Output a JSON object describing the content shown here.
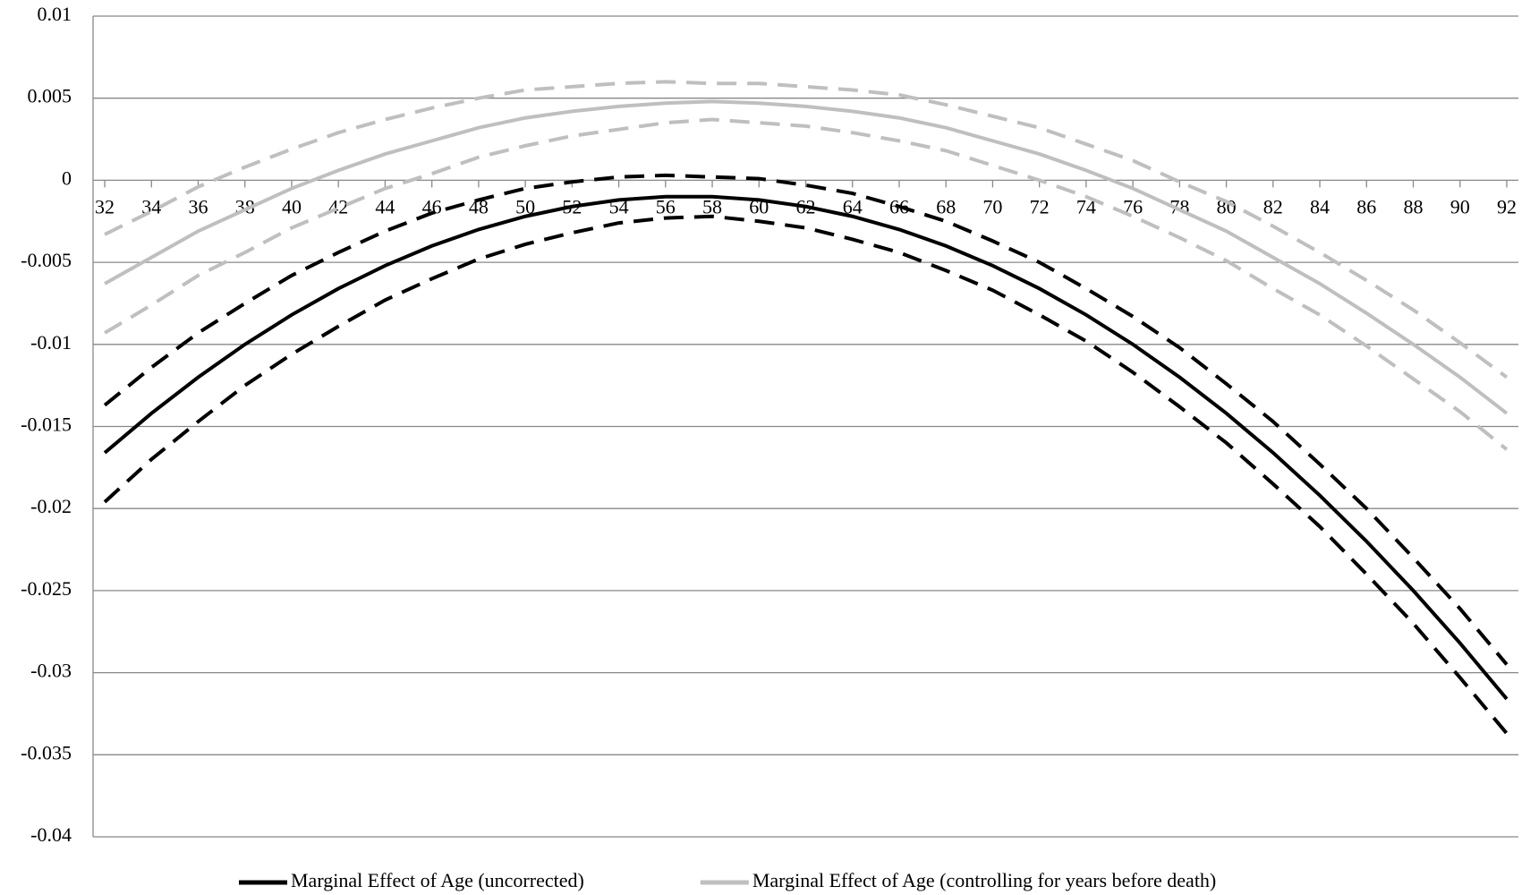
{
  "chart_data": {
    "type": "line",
    "x": [
      32,
      34,
      36,
      38,
      40,
      42,
      44,
      46,
      48,
      50,
      52,
      54,
      56,
      58,
      60,
      62,
      64,
      66,
      68,
      70,
      72,
      74,
      76,
      78,
      80,
      82,
      84,
      86,
      88,
      90,
      92
    ],
    "xlim": [
      31.5,
      92.5
    ],
    "xticks": [
      32,
      34,
      36,
      38,
      40,
      42,
      44,
      46,
      48,
      50,
      52,
      54,
      56,
      58,
      60,
      62,
      64,
      66,
      68,
      70,
      72,
      74,
      76,
      78,
      80,
      82,
      84,
      86,
      88,
      90,
      92
    ],
    "ylim": [
      -0.04,
      0.01
    ],
    "yticks": [
      0.01,
      0.005,
      0,
      -0.005,
      -0.01,
      -0.015,
      -0.02,
      -0.025,
      -0.03,
      -0.035,
      -0.04
    ],
    "grid": true,
    "legend": "bottom",
    "series": [
      {
        "name": "Marginal Effect of Age (uncorrected)",
        "color": "#000000",
        "dash": false,
        "values": [
          -0.0166,
          -0.0142,
          -0.012,
          -0.01,
          -0.0082,
          -0.0066,
          -0.0052,
          -0.004,
          -0.003,
          -0.0022,
          -0.0016,
          -0.0012,
          -0.001,
          -0.001,
          -0.0012,
          -0.0016,
          -0.0022,
          -0.003,
          -0.004,
          -0.0052,
          -0.0066,
          -0.0082,
          -0.01,
          -0.012,
          -0.0142,
          -0.0166,
          -0.0192,
          -0.022,
          -0.025,
          -0.0282,
          -0.0316
        ]
      },
      {
        "color": "#000000",
        "dash": true,
        "values": [
          -0.0137,
          -0.0114,
          -0.0093,
          -0.0075,
          -0.0058,
          -0.0044,
          -0.0031,
          -0.002,
          -0.0012,
          -0.0005,
          -0.0001,
          0.0002,
          0.0003,
          0.0002,
          0.0001,
          -0.0003,
          -0.0008,
          -0.0016,
          -0.0025,
          -0.0037,
          -0.005,
          -0.0066,
          -0.0083,
          -0.0102,
          -0.0124,
          -0.0147,
          -0.0173,
          -0.02,
          -0.023,
          -0.0261,
          -0.0295
        ]
      },
      {
        "color": "#000000",
        "dash": true,
        "values": [
          -0.0196,
          -0.017,
          -0.0147,
          -0.0125,
          -0.0106,
          -0.0089,
          -0.0073,
          -0.006,
          -0.0048,
          -0.0039,
          -0.0032,
          -0.0026,
          -0.0023,
          -0.0022,
          -0.0025,
          -0.0029,
          -0.0036,
          -0.0044,
          -0.0055,
          -0.0067,
          -0.0082,
          -0.0098,
          -0.0117,
          -0.0138,
          -0.016,
          -0.0185,
          -0.0211,
          -0.024,
          -0.027,
          -0.0303,
          -0.0337
        ]
      },
      {
        "name": "Marginal Effect of Age (controlling for years before death)",
        "color": "#bfbfbf",
        "dash": false,
        "values": [
          -0.0063,
          -0.0047,
          -0.0031,
          -0.0018,
          -0.0005,
          0.0006,
          0.0016,
          0.0024,
          0.0032,
          0.0038,
          0.0042,
          0.0045,
          0.0047,
          0.0048,
          0.0047,
          0.0045,
          0.0042,
          0.0038,
          0.0032,
          0.0024,
          0.0016,
          0.0006,
          -0.0005,
          -0.0018,
          -0.0031,
          -0.0047,
          -0.0063,
          -0.0081,
          -0.01,
          -0.012,
          -0.0142
        ]
      },
      {
        "color": "#bfbfbf",
        "dash": true,
        "values": [
          -0.0033,
          -0.0019,
          -0.0004,
          0.0008,
          0.0019,
          0.0029,
          0.0037,
          0.0044,
          0.005,
          0.0055,
          0.0057,
          0.0059,
          0.006,
          0.0059,
          0.0059,
          0.0057,
          0.0055,
          0.0052,
          0.0046,
          0.0039,
          0.0032,
          0.0022,
          0.0012,
          -0.0001,
          -0.0013,
          -0.0028,
          -0.0044,
          -0.0061,
          -0.0079,
          -0.0099,
          -0.012
        ]
      },
      {
        "color": "#bfbfbf",
        "dash": true,
        "values": [
          -0.0093,
          -0.0076,
          -0.0058,
          -0.0044,
          -0.0029,
          -0.0017,
          -0.0005,
          0.0004,
          0.0014,
          0.0021,
          0.0027,
          0.0031,
          0.0035,
          0.0037,
          0.0035,
          0.0033,
          0.0029,
          0.0024,
          0.0018,
          0.0009,
          0,
          -0.001,
          -0.0022,
          -0.0035,
          -0.0049,
          -0.0066,
          -0.0082,
          -0.0101,
          -0.0121,
          -0.0141,
          -0.0164
        ]
      }
    ]
  }
}
